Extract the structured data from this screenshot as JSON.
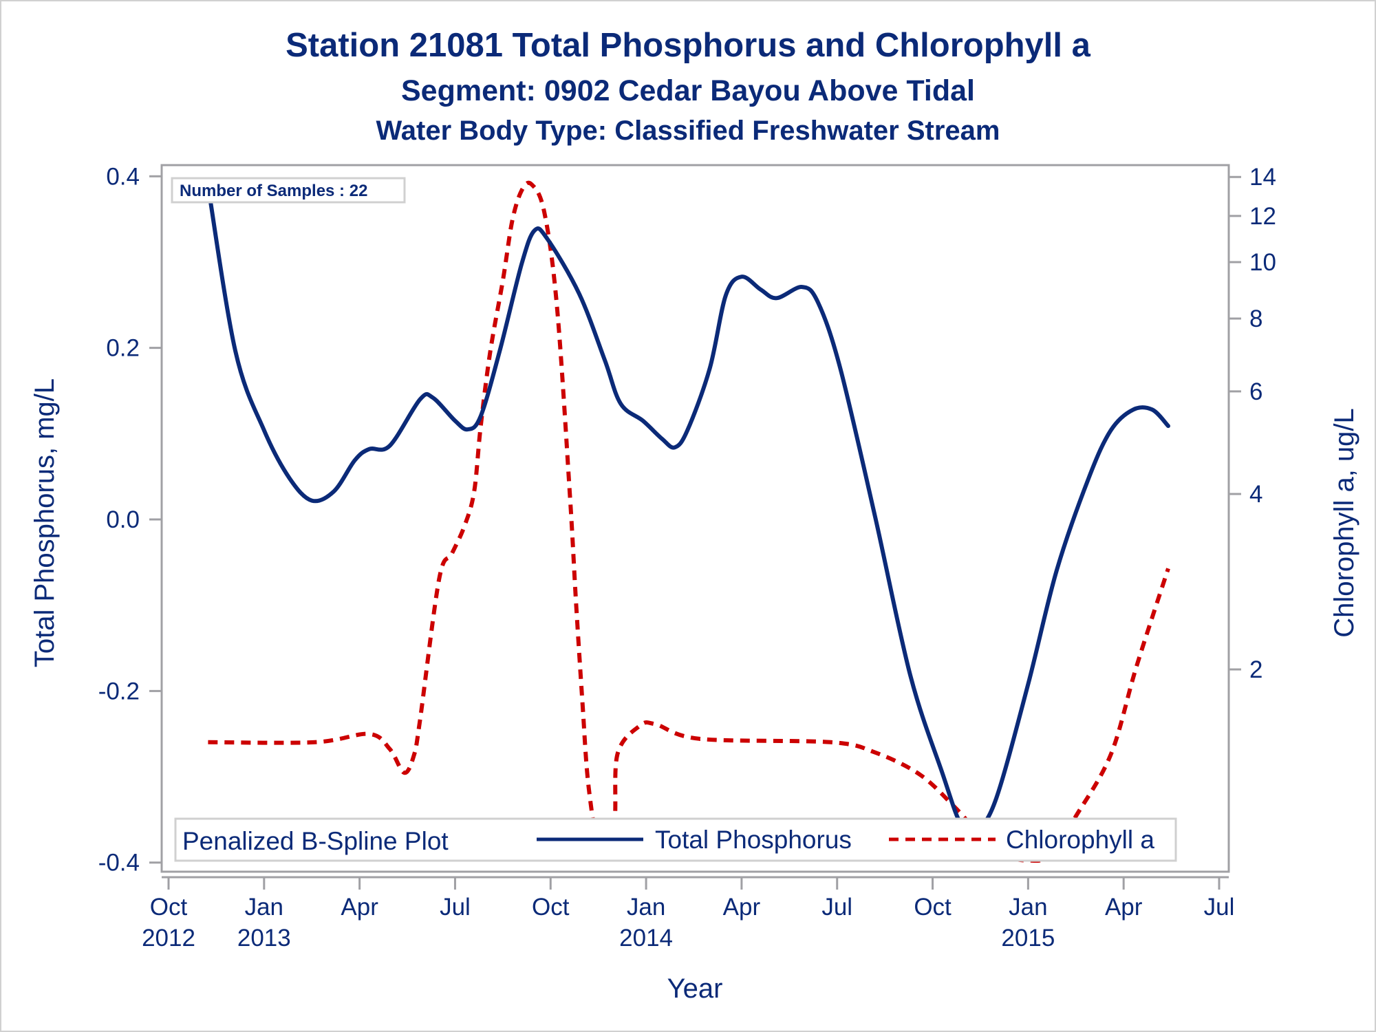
{
  "titles": {
    "line1": "Station 21081  Total Phosphorus and Chlorophyll a",
    "line2": "Segment: 0902  Cedar Bayou Above Tidal",
    "line3": "Water Body Type: Classified Freshwater Stream"
  },
  "inset": {
    "text": "Number of Samples : 22"
  },
  "chart_data": {
    "type": "line",
    "title": "Station 21081  Total Phosphorus and Chlorophyll a",
    "subtitle": [
      "Segment: 0902  Cedar Bayou Above Tidal",
      "Water Body Type: Classified Freshwater Stream"
    ],
    "xlabel": "Year",
    "ylabel": "Total Phosphorus, mg/L",
    "y2label": "Chlorophyll a, ug/L",
    "x_units": "months since Oct 2012",
    "xlim": [
      0,
      33
    ],
    "ylim": [
      -0.4,
      0.4
    ],
    "y2lim": [
      0.9,
      14.7
    ],
    "y2_scale": "log",
    "grid": false,
    "legend_position": "bottom-inside",
    "legend_title": "Penalized B-Spline Plot",
    "x_ticks": [
      {
        "value": 0,
        "label": [
          "Oct",
          "2012"
        ]
      },
      {
        "value": 3,
        "label": [
          "Jan",
          "2013"
        ]
      },
      {
        "value": 6,
        "label": [
          "Apr",
          ""
        ]
      },
      {
        "value": 9,
        "label": [
          "Jul",
          ""
        ]
      },
      {
        "value": 12,
        "label": [
          "Oct",
          ""
        ]
      },
      {
        "value": 15,
        "label": [
          "Jan",
          "2014"
        ]
      },
      {
        "value": 18,
        "label": [
          "Apr",
          ""
        ]
      },
      {
        "value": 21,
        "label": [
          "Jul",
          ""
        ]
      },
      {
        "value": 24,
        "label": [
          "Oct",
          ""
        ]
      },
      {
        "value": 27,
        "label": [
          "Jan",
          "2015"
        ]
      },
      {
        "value": 30,
        "label": [
          "Apr",
          ""
        ]
      },
      {
        "value": 33,
        "label": [
          "Jul",
          ""
        ]
      }
    ],
    "y_ticks": [
      {
        "value": 0.4,
        "label": "0.4"
      },
      {
        "value": 0.2,
        "label": "0.2"
      },
      {
        "value": 0.0,
        "label": "0.0"
      },
      {
        "value": -0.2,
        "label": "-0.2"
      },
      {
        "value": -0.4,
        "label": "-0.4"
      }
    ],
    "y2_ticks": [
      {
        "value": 14,
        "label": "14"
      },
      {
        "value": 12,
        "label": "12"
      },
      {
        "value": 10,
        "label": "10"
      },
      {
        "value": 8,
        "label": "8"
      },
      {
        "value": 6,
        "label": "6"
      },
      {
        "value": 4,
        "label": "4"
      },
      {
        "value": 2,
        "label": "2"
      }
    ],
    "series": [
      {
        "name": "Total Phosphorus",
        "axis": "left",
        "color": "#0b2a78",
        "style": "solid",
        "x": [
          1.24,
          2.1,
          3.0,
          3.8,
          4.5,
          5.2,
          5.85,
          6.3,
          6.95,
          7.9,
          8.3,
          9.0,
          9.4,
          9.8,
          10.4,
          11.1,
          11.5,
          11.9,
          12.9,
          13.7,
          14.2,
          14.9,
          15.5,
          15.9,
          16.3,
          17.0,
          17.5,
          18.0,
          18.6,
          19.1,
          19.9,
          20.4,
          21.1,
          22.2,
          23.3,
          24.3,
          24.9,
          25.4,
          26.0,
          27.0,
          27.9,
          28.9,
          29.6,
          30.3,
          30.9,
          31.4
        ],
        "y": [
          0.389,
          0.196,
          0.104,
          0.048,
          0.022,
          0.033,
          0.069,
          0.082,
          0.086,
          0.14,
          0.142,
          0.115,
          0.105,
          0.12,
          0.196,
          0.299,
          0.337,
          0.327,
          0.263,
          0.186,
          0.135,
          0.115,
          0.094,
          0.084,
          0.104,
          0.176,
          0.261,
          0.283,
          0.268,
          0.258,
          0.271,
          0.253,
          0.176,
          0.002,
          -0.182,
          -0.295,
          -0.356,
          -0.361,
          -0.325,
          -0.192,
          -0.059,
          0.048,
          0.104,
          0.128,
          0.128,
          0.109
        ]
      },
      {
        "name": "Chlorophyll a",
        "axis": "right",
        "color": "#cc0000",
        "style": "dashed",
        "x": [
          1.24,
          4.6,
          6.3,
          6.95,
          7.4,
          7.7,
          7.9,
          8.5,
          8.9,
          9.3,
          9.6,
          9.8,
          10.1,
          10.5,
          10.8,
          11.1,
          11.4,
          11.8,
          12.2,
          12.6,
          12.8,
          13.0,
          13.2,
          13.6,
          14.0,
          14.1,
          14.8,
          15.3,
          16.7,
          20.8,
          22.2,
          23.6,
          24.7,
          25.5,
          26.3,
          27.0,
          27.7,
          28.5,
          29.6,
          30.4,
          31.4
        ],
        "y": [
          1.5,
          1.5,
          1.55,
          1.46,
          1.33,
          1.42,
          1.64,
          2.86,
          3.16,
          3.53,
          4.04,
          5.2,
          7.0,
          9.3,
          11.8,
          13.3,
          13.6,
          12.2,
          8.4,
          4.04,
          2.6,
          1.76,
          1.25,
          0.94,
          1.08,
          1.43,
          1.6,
          1.61,
          1.52,
          1.5,
          1.44,
          1.32,
          1.16,
          1.04,
          0.96,
          0.94,
          0.96,
          1.12,
          1.43,
          2.02,
          2.98
        ]
      }
    ]
  }
}
